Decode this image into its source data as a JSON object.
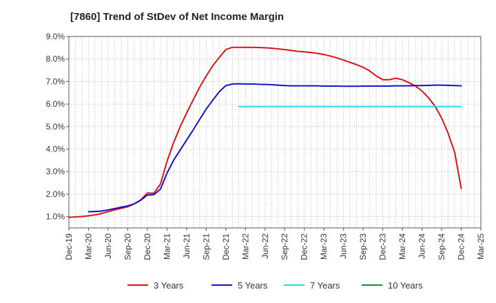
{
  "chart_data": {
    "type": "line",
    "title": "[7860]  Trend of StDev of Net Income Margin",
    "xlabel": "",
    "ylabel": "",
    "ylim": [
      0.5,
      9.0
    ],
    "y_ticks": [
      "1.0%",
      "2.0%",
      "3.0%",
      "4.0%",
      "5.0%",
      "6.0%",
      "7.0%",
      "8.0%",
      "9.0%"
    ],
    "y_tick_values": [
      1,
      2,
      3,
      4,
      5,
      6,
      7,
      8,
      9
    ],
    "x_ticks": [
      "Dec-19",
      "Mar-20",
      "Jun-20",
      "Sep-20",
      "Dec-20",
      "Mar-21",
      "Jun-21",
      "Sep-21",
      "Dec-21",
      "Mar-22",
      "Jun-22",
      "Sep-22",
      "Dec-22",
      "Mar-23",
      "Jun-23",
      "Sep-23",
      "Dec-23",
      "Mar-24",
      "Jun-24",
      "Sep-24",
      "Dec-24",
      "Mar-25"
    ],
    "grid": true,
    "legend_position": "bottom",
    "series": [
      {
        "name": "3 Years",
        "color": "#dd1111",
        "x": [
          "Dec-19",
          "Jan-20",
          "Feb-20",
          "Mar-20",
          "Apr-20",
          "May-20",
          "Jun-20",
          "Jul-20",
          "Aug-20",
          "Sep-20",
          "Oct-20",
          "Nov-20",
          "Dec-20",
          "Jan-21",
          "Feb-21",
          "Mar-21",
          "Apr-21",
          "May-21",
          "Jun-21",
          "Jul-21",
          "Aug-21",
          "Sep-21",
          "Oct-21",
          "Nov-21",
          "Dec-21",
          "Jan-22",
          "Feb-22",
          "Mar-22",
          "Apr-22",
          "May-22",
          "Jun-22",
          "Jul-22",
          "Aug-22",
          "Sep-22",
          "Oct-22",
          "Nov-22",
          "Dec-22",
          "Jan-23",
          "Feb-23",
          "Mar-23",
          "Apr-23",
          "May-23",
          "Jun-23",
          "Jul-23",
          "Aug-23",
          "Sep-23",
          "Oct-23",
          "Nov-23",
          "Dec-23",
          "Jan-24",
          "Feb-24",
          "Mar-24",
          "Apr-24",
          "May-24",
          "Jun-24",
          "Jul-24",
          "Aug-24",
          "Sep-24",
          "Oct-24",
          "Nov-24",
          "Dec-24"
        ],
        "values": [
          0.97,
          0.99,
          1.01,
          1.04,
          1.08,
          1.14,
          1.22,
          1.3,
          1.37,
          1.44,
          1.57,
          1.75,
          2.05,
          2.04,
          2.45,
          3.45,
          4.28,
          4.98,
          5.6,
          6.18,
          6.75,
          7.25,
          7.7,
          8.07,
          8.42,
          8.52,
          8.52,
          8.52,
          8.52,
          8.51,
          8.5,
          8.48,
          8.45,
          8.42,
          8.38,
          8.34,
          8.32,
          8.29,
          8.25,
          8.2,
          8.13,
          8.05,
          7.95,
          7.85,
          7.75,
          7.63,
          7.47,
          7.25,
          7.08,
          7.08,
          7.15,
          7.08,
          6.95,
          6.8,
          6.58,
          6.28,
          5.9,
          5.38,
          4.7,
          3.85,
          2.25
        ]
      },
      {
        "name": "5 Years",
        "color": "#1111cc",
        "x": [
          "Mar-20",
          "Apr-20",
          "May-20",
          "Jun-20",
          "Jul-20",
          "Aug-20",
          "Sep-20",
          "Oct-20",
          "Nov-20",
          "Dec-20",
          "Jan-21",
          "Feb-21",
          "Mar-21",
          "Apr-21",
          "May-21",
          "Jun-21",
          "Jul-21",
          "Aug-21",
          "Sep-21",
          "Oct-21",
          "Nov-21",
          "Dec-21",
          "Jan-22",
          "Feb-22",
          "Mar-22",
          "Apr-22",
          "May-22",
          "Jun-22",
          "Jul-22",
          "Aug-22",
          "Sep-22",
          "Oct-22",
          "Nov-22",
          "Dec-22",
          "Jan-23",
          "Feb-23",
          "Mar-23",
          "Apr-23",
          "May-23",
          "Jun-23",
          "Jul-23",
          "Aug-23",
          "Sep-23",
          "Oct-23",
          "Nov-23",
          "Dec-23",
          "Jan-24",
          "Feb-24",
          "Mar-24",
          "Apr-24",
          "May-24",
          "Jun-24",
          "Jul-24",
          "Aug-24",
          "Sep-24",
          "Oct-24",
          "Nov-24",
          "Dec-24"
        ],
        "values": [
          1.22,
          1.23,
          1.25,
          1.3,
          1.36,
          1.42,
          1.48,
          1.57,
          1.73,
          1.96,
          1.98,
          2.22,
          2.93,
          3.5,
          3.95,
          4.4,
          4.85,
          5.32,
          5.78,
          6.17,
          6.55,
          6.82,
          6.89,
          6.9,
          6.89,
          6.89,
          6.88,
          6.87,
          6.86,
          6.84,
          6.82,
          6.81,
          6.81,
          6.81,
          6.81,
          6.81,
          6.8,
          6.8,
          6.8,
          6.79,
          6.79,
          6.79,
          6.8,
          6.8,
          6.8,
          6.8,
          6.8,
          6.81,
          6.81,
          6.81,
          6.82,
          6.82,
          6.83,
          6.84,
          6.84,
          6.83,
          6.82,
          6.81
        ]
      },
      {
        "name": "7 Years",
        "color": "#22dddd",
        "x": [
          "Feb-22",
          "Dec-24"
        ],
        "values": [
          5.89,
          5.89
        ]
      },
      {
        "name": "10 Years",
        "color": "#228822",
        "x": [],
        "values": []
      }
    ]
  }
}
